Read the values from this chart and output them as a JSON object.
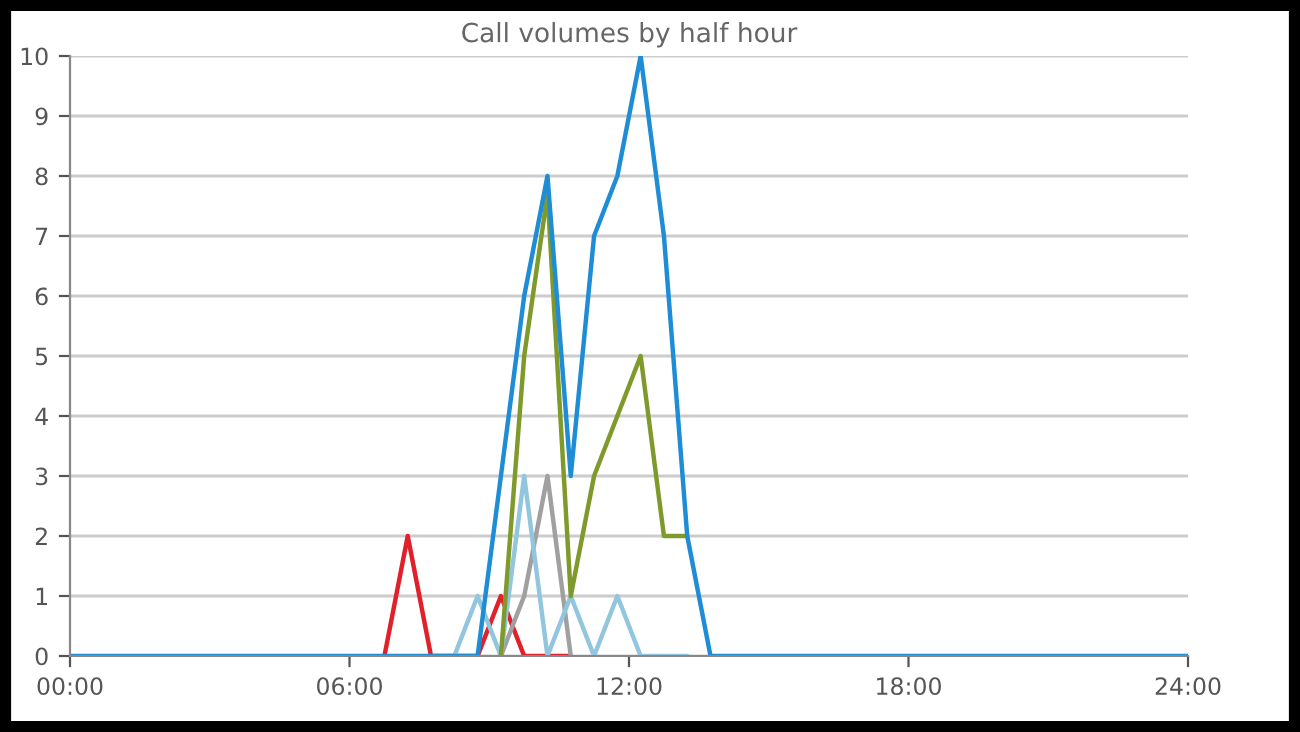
{
  "chart_data": {
    "type": "line",
    "title": "Call volumes by half hour",
    "x": [
      0,
      0.25,
      0.75,
      1.25,
      1.75,
      2.25,
      2.75,
      3.25,
      3.75,
      4.25,
      4.75,
      5.25,
      5.75,
      6.25,
      6.75,
      7.25,
      7.75,
      8.25,
      8.75,
      9.25,
      9.75,
      10.25,
      10.75,
      11.25,
      11.75,
      12.25,
      12.75,
      13.25,
      13.75,
      14.25,
      14.75,
      15.25,
      15.75,
      16.25,
      16.75,
      17.25,
      17.75,
      18.25,
      18.75,
      19.25,
      19.75,
      20.25,
      20.75,
      21.25,
      21.75,
      22.25,
      22.75,
      23.25,
      23.75,
      24
    ],
    "series": [
      {
        "color": "#e0202a",
        "values": [
          null,
          null,
          null,
          null,
          null,
          null,
          null,
          null,
          null,
          null,
          null,
          null,
          null,
          null,
          0,
          2,
          0,
          null,
          0,
          1,
          0,
          0,
          0,
          null,
          null,
          null,
          null,
          null,
          null,
          null,
          null,
          null,
          null,
          null,
          null,
          null,
          null,
          null,
          null,
          null,
          null,
          null,
          null,
          null,
          null,
          null,
          null,
          null,
          null,
          null
        ]
      },
      {
        "color": "#a0a0a0",
        "values": [
          null,
          null,
          null,
          null,
          null,
          null,
          null,
          null,
          null,
          null,
          null,
          null,
          null,
          null,
          null,
          null,
          null,
          null,
          null,
          0,
          1,
          3,
          0,
          null,
          null,
          null,
          null,
          null,
          null,
          null,
          null,
          null,
          null,
          null,
          null,
          null,
          null,
          null,
          null,
          null,
          null,
          null,
          null,
          null,
          null,
          null,
          null,
          null,
          null,
          null
        ]
      },
      {
        "color": "#92c5de",
        "values": [
          null,
          null,
          null,
          null,
          null,
          null,
          null,
          null,
          null,
          null,
          null,
          null,
          null,
          null,
          null,
          null,
          null,
          0,
          1,
          0,
          3,
          0,
          1,
          0,
          1,
          0,
          0,
          0,
          null,
          null,
          null,
          null,
          null,
          null,
          null,
          null,
          null,
          null,
          null,
          null,
          null,
          null,
          null,
          null,
          null,
          null,
          null,
          null,
          null,
          null
        ]
      },
      {
        "color": "#7f9a2a",
        "values": [
          null,
          null,
          null,
          null,
          null,
          null,
          null,
          null,
          null,
          null,
          null,
          null,
          null,
          null,
          null,
          null,
          null,
          null,
          null,
          0,
          5,
          7.7,
          1,
          3,
          4,
          5,
          2,
          2,
          null,
          null,
          null,
          null,
          null,
          null,
          null,
          null,
          null,
          null,
          null,
          null,
          null,
          null,
          null,
          null,
          null,
          null,
          null,
          null,
          null,
          null
        ]
      },
      {
        "color": "#1f8dd6",
        "values": [
          0,
          0,
          0,
          0,
          0,
          0,
          0,
          0,
          0,
          0,
          0,
          0,
          0,
          0,
          0,
          0,
          0,
          0,
          0,
          3,
          6,
          8,
          3,
          7,
          8,
          10,
          7,
          2,
          0,
          0,
          0,
          0,
          0,
          0,
          0,
          0,
          0,
          0,
          0,
          0,
          0,
          0,
          0,
          0,
          0,
          0,
          0,
          0,
          0,
          0
        ]
      }
    ],
    "xlim": [
      0,
      24
    ],
    "xticks": [
      {
        "value": 0,
        "label": "00:00"
      },
      {
        "value": 6,
        "label": "06:00"
      },
      {
        "value": 12,
        "label": "12:00"
      },
      {
        "value": 18,
        "label": "18:00"
      },
      {
        "value": 24,
        "label": "24:00"
      }
    ],
    "ylim": [
      0,
      10
    ],
    "yticks": [
      0,
      1,
      2,
      3,
      4,
      5,
      6,
      7,
      8,
      9,
      10
    ],
    "grid": "y",
    "legend": false,
    "marker": "none",
    "line_style": "solid"
  }
}
